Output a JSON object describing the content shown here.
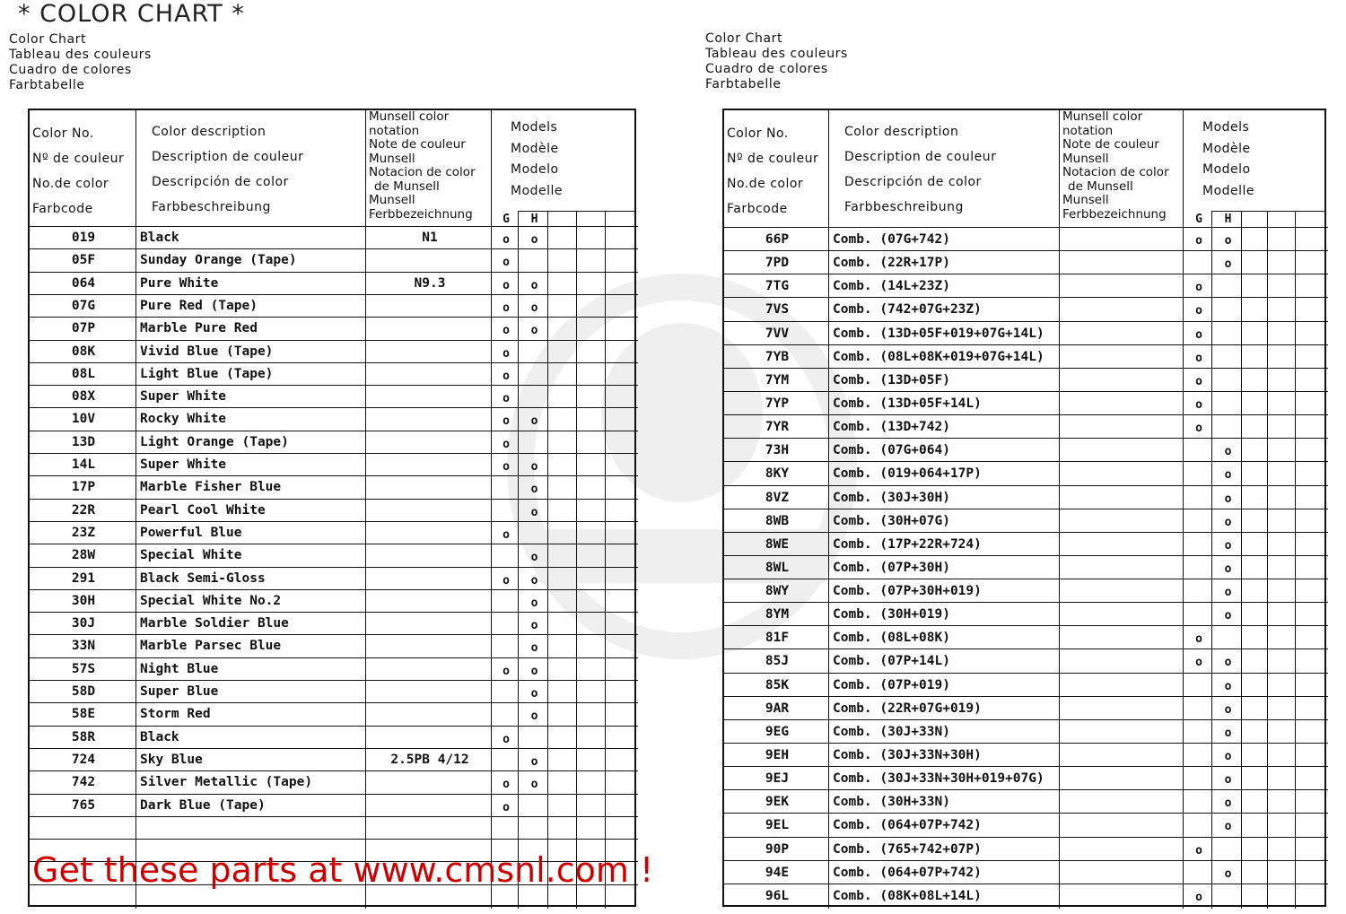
{
  "title": "* COLOR CHART *",
  "languages": [
    "Color Chart",
    "Tableau des couleurs",
    "Cuadro de colores",
    "Farbtabelle"
  ],
  "headers": {
    "color_no": [
      "Color No.",
      "Nº de couleur",
      "No.de color",
      "Farbcode"
    ],
    "description": [
      "Color description",
      "Description de couleur",
      "Descripción de color",
      "Farbbeschreibung"
    ],
    "munsell": [
      "Munsell color",
      "notation",
      "Note de couleur",
      "Munsell",
      "Notacion de color",
      "de Munsell",
      "Munsell",
      "Ferbbezeichnung"
    ],
    "models": [
      "Models",
      "Modèle",
      "Modelo",
      "Modelle"
    ],
    "model_cols": [
      "G",
      "H"
    ]
  },
  "left_table": {
    "rows": [
      {
        "code": "019",
        "desc": "Black",
        "munsell": "N1",
        "g": "o",
        "h": "o"
      },
      {
        "code": "05F",
        "desc": "Sunday Orange (Tape)",
        "munsell": "",
        "g": "o",
        "h": ""
      },
      {
        "code": "064",
        "desc": "Pure White",
        "munsell": "N9.3",
        "g": "o",
        "h": "o"
      },
      {
        "code": "07G",
        "desc": "Pure Red (Tape)",
        "munsell": "",
        "g": "o",
        "h": "o"
      },
      {
        "code": "07P",
        "desc": "Marble Pure Red",
        "munsell": "",
        "g": "o",
        "h": "o"
      },
      {
        "code": "08K",
        "desc": "Vivid Blue (Tape)",
        "munsell": "",
        "g": "o",
        "h": ""
      },
      {
        "code": "08L",
        "desc": "Light Blue (Tape)",
        "munsell": "",
        "g": "o",
        "h": ""
      },
      {
        "code": "08X",
        "desc": "Super White",
        "munsell": "",
        "g": "o",
        "h": ""
      },
      {
        "code": "10V",
        "desc": "Rocky White",
        "munsell": "",
        "g": "o",
        "h": "o"
      },
      {
        "code": "13D",
        "desc": "Light Orange (Tape)",
        "munsell": "",
        "g": "o",
        "h": ""
      },
      {
        "code": "14L",
        "desc": "Super White",
        "munsell": "",
        "g": "o",
        "h": "o"
      },
      {
        "code": "17P",
        "desc": "Marble Fisher Blue",
        "munsell": "",
        "g": "",
        "h": "o"
      },
      {
        "code": "22R",
        "desc": "Pearl Cool White",
        "munsell": "",
        "g": "",
        "h": "o"
      },
      {
        "code": "23Z",
        "desc": "Powerful Blue",
        "munsell": "",
        "g": "o",
        "h": ""
      },
      {
        "code": "28W",
        "desc": "Special White",
        "munsell": "",
        "g": "",
        "h": "o"
      },
      {
        "code": "291",
        "desc": "Black Semi-Gloss",
        "munsell": "",
        "g": "o",
        "h": "o"
      },
      {
        "code": "30H",
        "desc": "Special White No.2",
        "munsell": "",
        "g": "",
        "h": "o"
      },
      {
        "code": "30J",
        "desc": "Marble Soldier Blue",
        "munsell": "",
        "g": "",
        "h": "o"
      },
      {
        "code": "33N",
        "desc": "Marble Parsec Blue",
        "munsell": "",
        "g": "",
        "h": "o"
      },
      {
        "code": "57S",
        "desc": "Night Blue",
        "munsell": "",
        "g": "o",
        "h": "o"
      },
      {
        "code": "58D",
        "desc": "Super Blue",
        "munsell": "",
        "g": "",
        "h": "o"
      },
      {
        "code": "58E",
        "desc": "Storm Red",
        "munsell": "",
        "g": "",
        "h": "o"
      },
      {
        "code": "58R",
        "desc": "Black",
        "munsell": "",
        "g": "o",
        "h": ""
      },
      {
        "code": "724",
        "desc": "Sky Blue",
        "munsell": "2.5PB 4/12",
        "g": "",
        "h": "o"
      },
      {
        "code": "742",
        "desc": "Silver Metallic (Tape)",
        "munsell": "",
        "g": "o",
        "h": "o"
      },
      {
        "code": "765",
        "desc": "Dark Blue (Tape)",
        "munsell": "",
        "g": "o",
        "h": ""
      },
      {
        "code": "",
        "desc": "",
        "munsell": "",
        "g": "",
        "h": ""
      },
      {
        "code": "",
        "desc": "",
        "munsell": "",
        "g": "",
        "h": ""
      },
      {
        "code": "",
        "desc": "",
        "munsell": "",
        "g": "",
        "h": ""
      },
      {
        "code": "",
        "desc": "",
        "munsell": "",
        "g": "",
        "h": ""
      }
    ]
  },
  "right_table": {
    "rows": [
      {
        "code": "66P",
        "desc": "Comb. (07G+742)",
        "munsell": "",
        "g": "o",
        "h": "o"
      },
      {
        "code": "7PD",
        "desc": "Comb. (22R+17P)",
        "munsell": "",
        "g": "",
        "h": "o"
      },
      {
        "code": "7TG",
        "desc": "Comb. (14L+23Z)",
        "munsell": "",
        "g": "o",
        "h": ""
      },
      {
        "code": "7VS",
        "desc": "Comb. (742+07G+23Z)",
        "munsell": "",
        "g": "o",
        "h": ""
      },
      {
        "code": "7VV",
        "desc": "Comb. (13D+05F+019+07G+14L)",
        "munsell": "",
        "g": "o",
        "h": ""
      },
      {
        "code": "7YB",
        "desc": "Comb. (08L+08K+019+07G+14L)",
        "munsell": "",
        "g": "o",
        "h": ""
      },
      {
        "code": "7YM",
        "desc": "Comb. (13D+05F)",
        "munsell": "",
        "g": "o",
        "h": ""
      },
      {
        "code": "7YP",
        "desc": "Comb. (13D+05F+14L)",
        "munsell": "",
        "g": "o",
        "h": ""
      },
      {
        "code": "7YR",
        "desc": "Comb. (13D+742)",
        "munsell": "",
        "g": "o",
        "h": ""
      },
      {
        "code": "73H",
        "desc": "Comb. (07G+064)",
        "munsell": "",
        "g": "",
        "h": "o"
      },
      {
        "code": "8KY",
        "desc": "Comb. (019+064+17P)",
        "munsell": "",
        "g": "",
        "h": "o"
      },
      {
        "code": "8VZ",
        "desc": "Comb. (30J+30H)",
        "munsell": "",
        "g": "",
        "h": "o"
      },
      {
        "code": "8WB",
        "desc": "Comb. (30H+07G)",
        "munsell": "",
        "g": "",
        "h": "o"
      },
      {
        "code": "8WE",
        "desc": "Comb. (17P+22R+724)",
        "munsell": "",
        "g": "",
        "h": "o"
      },
      {
        "code": "8WL",
        "desc": "Comb. (07P+30H)",
        "munsell": "",
        "g": "",
        "h": "o"
      },
      {
        "code": "8WY",
        "desc": "Comb. (07P+30H+019)",
        "munsell": "",
        "g": "",
        "h": "o"
      },
      {
        "code": "8YM",
        "desc": "Comb. (30H+019)",
        "munsell": "",
        "g": "",
        "h": "o"
      },
      {
        "code": "81F",
        "desc": "Comb. (08L+08K)",
        "munsell": "",
        "g": "o",
        "h": ""
      },
      {
        "code": "85J",
        "desc": "Comb. (07P+14L)",
        "munsell": "",
        "g": "o",
        "h": "o"
      },
      {
        "code": "85K",
        "desc": "Comb. (07P+019)",
        "munsell": "",
        "g": "",
        "h": "o"
      },
      {
        "code": "9AR",
        "desc": "Comb. (22R+07G+019)",
        "munsell": "",
        "g": "",
        "h": "o"
      },
      {
        "code": "9EG",
        "desc": "Comb. (30J+33N)",
        "munsell": "",
        "g": "",
        "h": "o"
      },
      {
        "code": "9EH",
        "desc": "Comb. (30J+33N+30H)",
        "munsell": "",
        "g": "",
        "h": "o"
      },
      {
        "code": "9EJ",
        "desc": "Comb. (30J+33N+30H+019+07G)",
        "munsell": "",
        "g": "",
        "h": "o"
      },
      {
        "code": "9EK",
        "desc": "Comb. (30H+33N)",
        "munsell": "",
        "g": "",
        "h": "o"
      },
      {
        "code": "9EL",
        "desc": "Comb. (064+07P+742)",
        "munsell": "",
        "g": "",
        "h": "o"
      },
      {
        "code": "90P",
        "desc": "Comb. (765+742+07P)",
        "munsell": "",
        "g": "o",
        "h": ""
      },
      {
        "code": "94E",
        "desc": "Comb. (064+07P+742)",
        "munsell": "",
        "g": "",
        "h": "o"
      },
      {
        "code": "96L",
        "desc": "Comb. (08K+08L+14L)",
        "munsell": "",
        "g": "o",
        "h": ""
      }
    ]
  },
  "watermark": "CMS",
  "footer": "Get these parts at www.cmsnl.com !",
  "colors": {
    "footer": "#cc0000",
    "ink": "#111111"
  }
}
